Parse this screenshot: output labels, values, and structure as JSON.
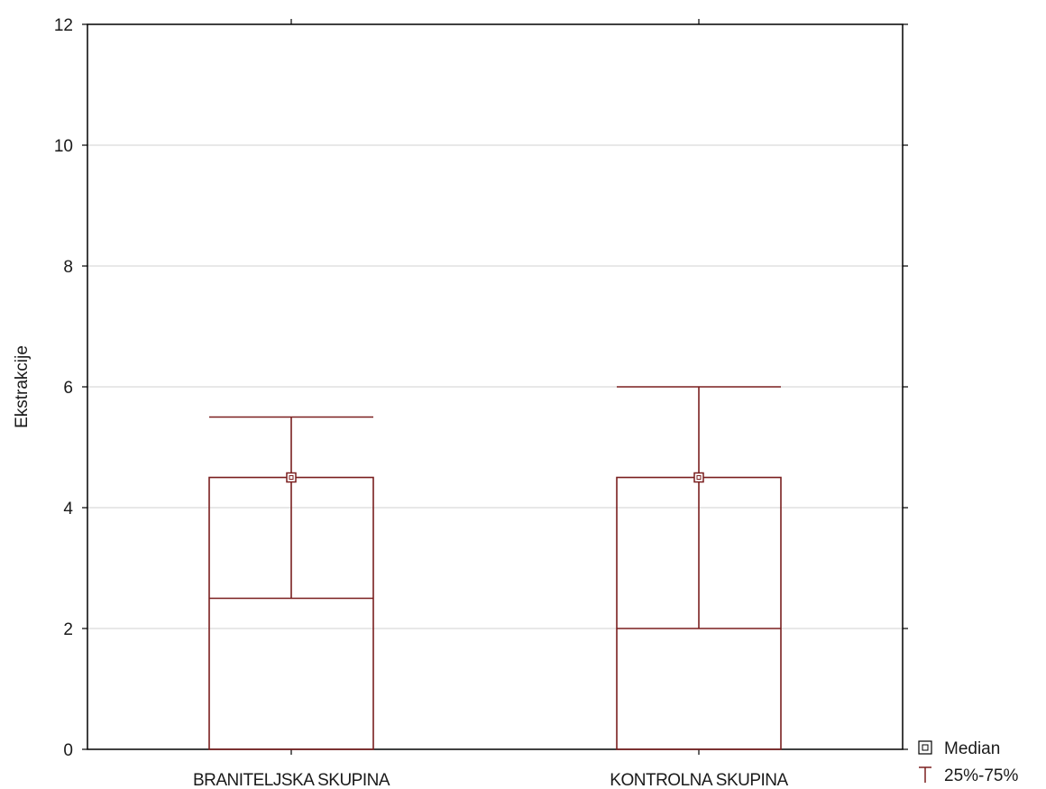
{
  "chart_data": {
    "type": "boxplot",
    "ylabel": "Ekstrakcije",
    "xlabel": "",
    "ylim": [
      0,
      12
    ],
    "yticks": [
      0,
      2,
      4,
      6,
      8,
      10,
      12
    ],
    "grid": true,
    "categories": [
      "BRANITELJSKA SKUPINA",
      "KONTROLNA SKUPINA"
    ],
    "groups": [
      {
        "name": "BRANITELJSKA SKUPINA",
        "median": 4.5,
        "q1": 2.5,
        "q3": 4.5,
        "whisker_high": 5.5
      },
      {
        "name": "KONTROLNA SKUPINA",
        "median": 4.5,
        "q1": 2.0,
        "q3": 4.5,
        "whisker_high": 6.0
      }
    ],
    "legend": {
      "position": "bottom-right",
      "entries": [
        {
          "label": "Median",
          "marker": "square"
        },
        {
          "label": "25%-75%",
          "marker": "box"
        }
      ]
    },
    "colors": {
      "series": "#7a1f1f",
      "grid": "#d0d0d0",
      "frame": "#000000"
    }
  }
}
